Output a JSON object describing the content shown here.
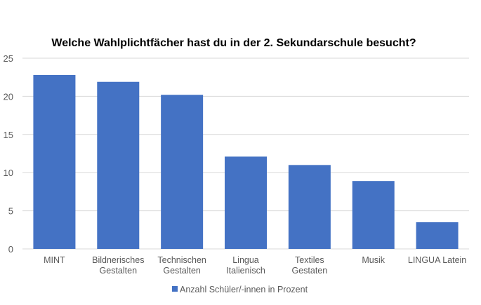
{
  "chart_data": {
    "type": "bar",
    "title": "Welche Wahlplichtfächer hast du in der 2. Sekundarschule besucht?",
    "categories": [
      [
        "MINT"
      ],
      [
        "Bildnerisches",
        "Gestalten"
      ],
      [
        "Technischen",
        "Gestalten"
      ],
      [
        "Lingua",
        "Italienisch"
      ],
      [
        "Textiles",
        "Gestaten"
      ],
      [
        "Musik"
      ],
      [
        "LINGUA Latein"
      ]
    ],
    "series": [
      {
        "name": "Anzahl Schüler/-innen in Prozent",
        "values": [
          22.8,
          21.9,
          20.2,
          12.1,
          11.0,
          8.9,
          3.5
        ]
      }
    ],
    "ylim": [
      0,
      25
    ],
    "yticks": [
      "0",
      "5",
      "10",
      "15",
      "20",
      "25"
    ],
    "grid": true,
    "legend_position": "bottom",
    "colors": {
      "bar": "#4472c4",
      "grid": "#d9d9d9",
      "tick_text": "#595959",
      "title": "#000000"
    }
  }
}
